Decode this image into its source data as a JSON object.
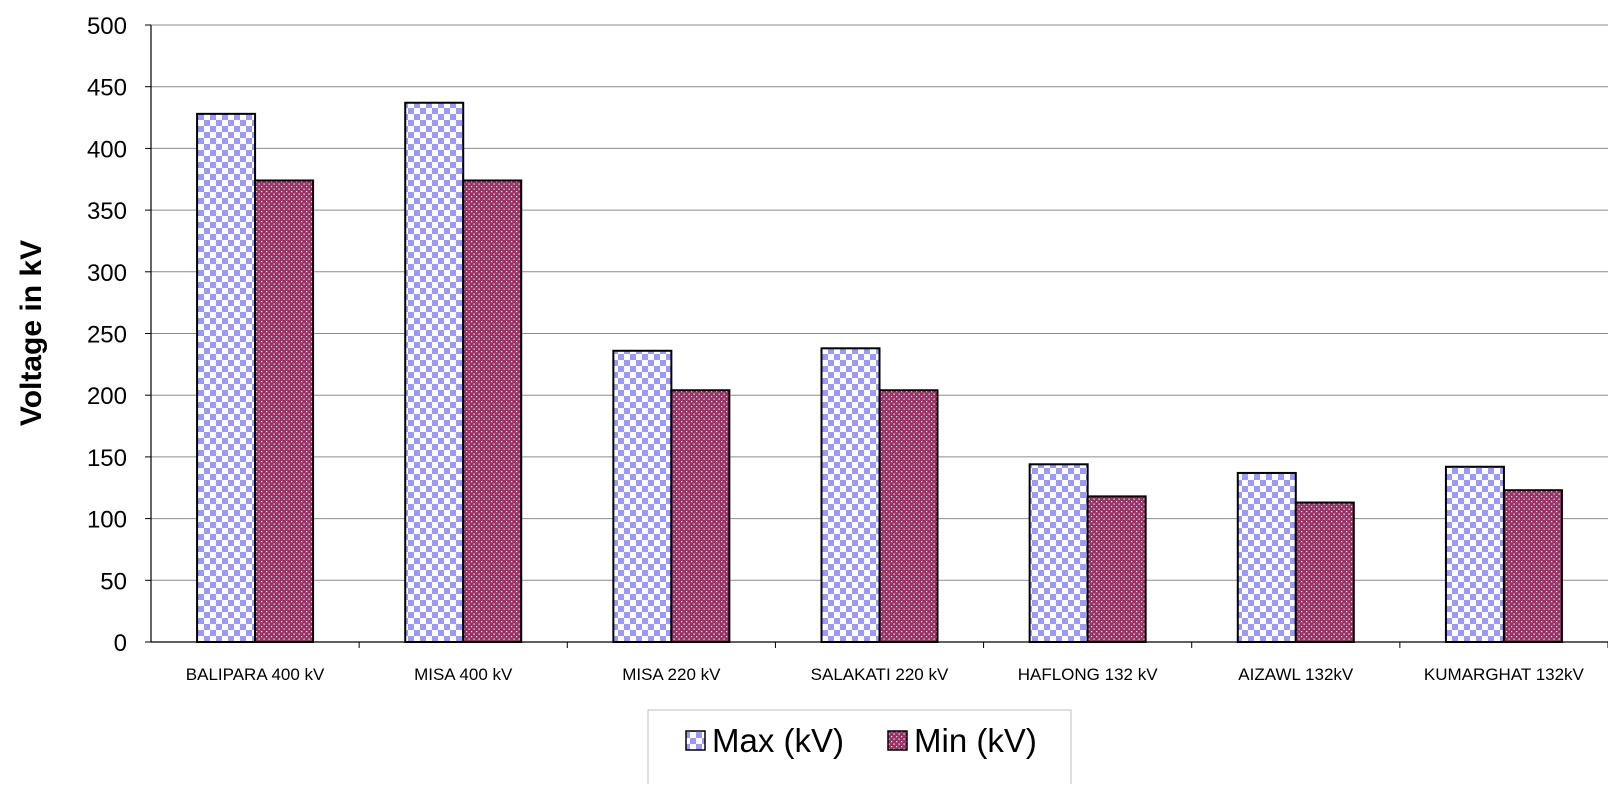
{
  "chart_data": {
    "type": "bar",
    "title": "",
    "xlabel": "",
    "ylabel": "Voltage in kV",
    "ylim": [
      0,
      500
    ],
    "yticks": [
      0,
      50,
      100,
      150,
      200,
      250,
      300,
      350,
      400,
      450,
      500
    ],
    "grid": true,
    "legend_position": "bottom-center",
    "categories": [
      "BALIPARA 400 kV",
      "MISA 400 kV",
      "MISA 220 kV",
      "SALAKATI 220 kV",
      "HAFLONG 132 kV",
      "AIZAWL 132kV",
      "KUMARGHAT 132kV"
    ],
    "series": [
      {
        "name": "Max (kV)",
        "values": [
          428,
          437,
          236,
          238,
          144,
          137,
          142
        ],
        "color": "#9999FF",
        "pattern": "checkerboard"
      },
      {
        "name": "Min (kV)",
        "values": [
          374,
          374,
          204,
          204,
          118,
          113,
          123
        ],
        "color": "#993366",
        "pattern": "dotted"
      }
    ]
  }
}
